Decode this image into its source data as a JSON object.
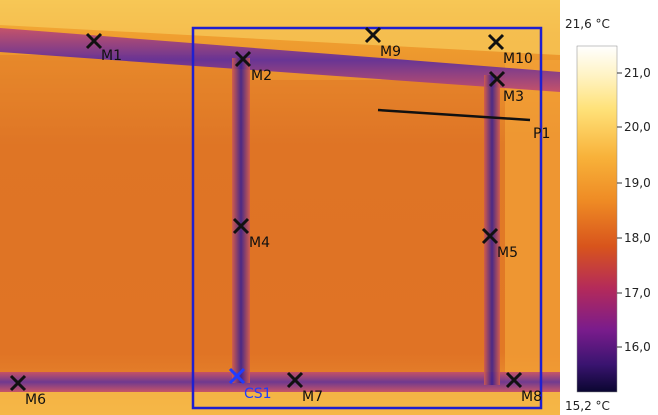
{
  "scale": {
    "max_label": "21,6 °C",
    "min_label": "15,2 °C",
    "ticks": [
      "21,0",
      "20,0",
      "19,0",
      "18,0",
      "17,0",
      "16,0"
    ]
  },
  "markers": [
    {
      "id": "M1",
      "label": "M1"
    },
    {
      "id": "M2",
      "label": "M2"
    },
    {
      "id": "M3",
      "label": "M3"
    },
    {
      "id": "M4",
      "label": "M4"
    },
    {
      "id": "M5",
      "label": "M5"
    },
    {
      "id": "M6",
      "label": "M6"
    },
    {
      "id": "M7",
      "label": "M7"
    },
    {
      "id": "M8",
      "label": "M8"
    },
    {
      "id": "M9",
      "label": "M9"
    },
    {
      "id": "M10",
      "label": "M10"
    },
    {
      "id": "CS1",
      "label": "CS1"
    }
  ],
  "line_profile": {
    "label": "P1"
  },
  "colors": {
    "marker": "#111111",
    "cold_spot": "#1f3cff",
    "roi_box": "#1f1fd0",
    "line": "#111111"
  }
}
